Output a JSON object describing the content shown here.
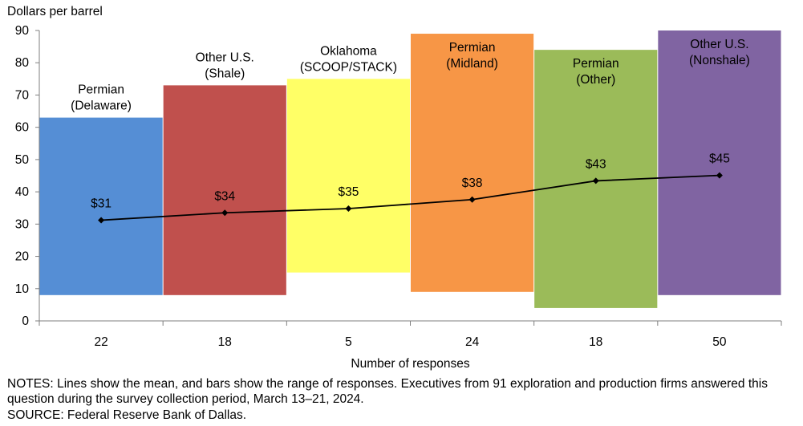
{
  "chart_data": {
    "type": "bar",
    "subtype": "floating range bars with mean line",
    "ylabel": "Dollars per barrel",
    "xlabel": "Number of responses",
    "ylim": [
      0,
      90
    ],
    "yticks": [
      0,
      10,
      20,
      30,
      40,
      50,
      60,
      70,
      80,
      90
    ],
    "grid": false,
    "categories": [
      "22",
      "18",
      "5",
      "24",
      "18",
      "50"
    ],
    "bar_labels": [
      [
        "Permian",
        "(Delaware)"
      ],
      [
        "Other U.S.",
        "(Shale)"
      ],
      [
        "Oklahoma",
        "(SCOOP/STACK)"
      ],
      [
        "Permian",
        "(Midland)"
      ],
      [
        "Permian",
        "(Other)"
      ],
      [
        "Other U.S.",
        "(Nonshale)"
      ]
    ],
    "ranges": [
      [
        8,
        63
      ],
      [
        8,
        73
      ],
      [
        15,
        75
      ],
      [
        9,
        89
      ],
      [
        4,
        84
      ],
      [
        8,
        90
      ]
    ],
    "bar_colors": [
      "#558ED5",
      "#C0504D",
      "#FFFF66",
      "#F79646",
      "#9BBB59",
      "#8064A2"
    ],
    "mean_values": [
      31.2,
      33.5,
      34.8,
      37.6,
      43.4,
      45.1
    ],
    "mean_labels": [
      "$31",
      "$34",
      "$35",
      "$38",
      "$43",
      "$45"
    ],
    "line_color": "#000000"
  },
  "notes": "NOTES: Lines show the mean, and bars show the range of responses. Executives from 91 exploration and production firms answered this question during the survey collection period, March 13–21, 2024.",
  "source": "SOURCE: Federal Reserve Bank of Dallas."
}
